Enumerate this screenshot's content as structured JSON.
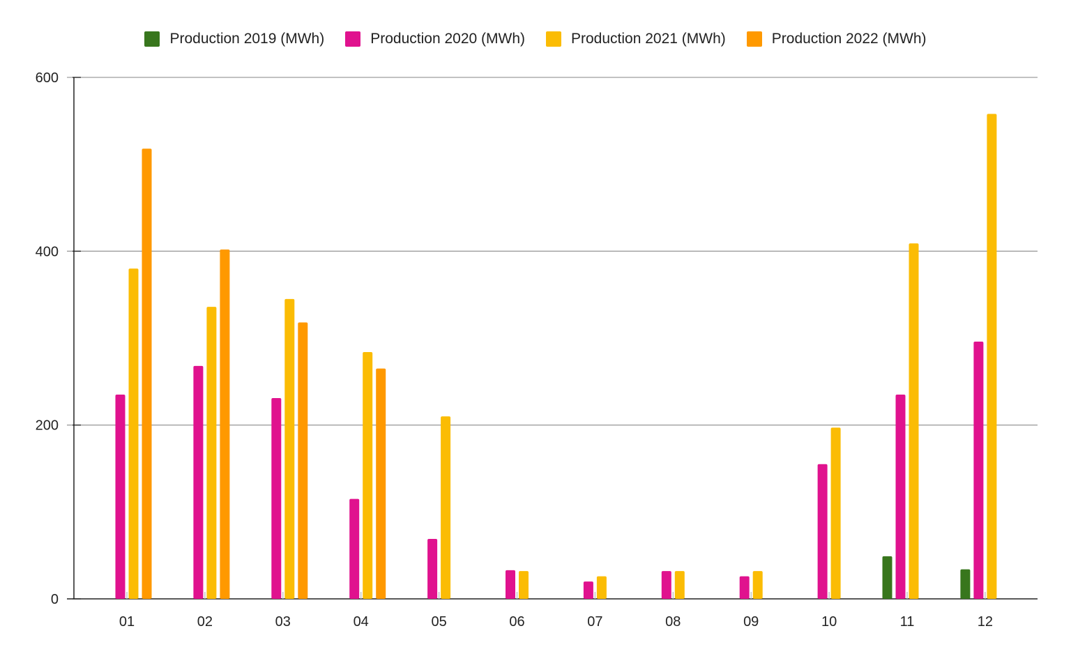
{
  "chart_data": {
    "type": "bar",
    "categories": [
      "01",
      "02",
      "03",
      "04",
      "05",
      "06",
      "07",
      "08",
      "09",
      "10",
      "11",
      "12"
    ],
    "series": [
      {
        "name": "Production 2019 (MWh)",
        "color": "#38761d",
        "values": [
          null,
          null,
          null,
          null,
          null,
          null,
          null,
          null,
          null,
          null,
          49,
          34
        ]
      },
      {
        "name": "Production 2020 (MWh)",
        "color": "#e0128e",
        "values": [
          235,
          268,
          231,
          115,
          69,
          33,
          20,
          32,
          26,
          155,
          235,
          296
        ]
      },
      {
        "name": "Production 2021 (MWh)",
        "color": "#fbbc04",
        "values": [
          380,
          336,
          345,
          284,
          210,
          32,
          26,
          32,
          32,
          197,
          409,
          558
        ]
      },
      {
        "name": "Production 2022 (MWh)",
        "color": "#ff9900",
        "values": [
          518,
          402,
          318,
          265,
          null,
          null,
          null,
          null,
          null,
          null,
          null,
          null
        ]
      }
    ],
    "yticks": [
      0,
      200,
      400,
      600
    ],
    "ylim": [
      0,
      600
    ],
    "grid": true,
    "legend": "top-center",
    "title": "",
    "xlabel": "",
    "ylabel": ""
  }
}
